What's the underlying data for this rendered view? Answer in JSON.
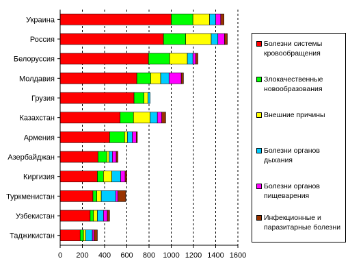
{
  "chart_data": {
    "type": "bar",
    "orientation": "horizontal",
    "stacked": true,
    "categories": [
      "Украина",
      "Россия",
      "Белоруссия",
      "Молдавия",
      "Грузия",
      "Казахстан",
      "Армения",
      "Азербайджан",
      "Киргизия",
      "Туркменистан",
      "Узбекистан",
      "Таджикистан"
    ],
    "series": [
      {
        "name": "Болезни системы кровообращения",
        "color": "#ff0000",
        "values": [
          1000,
          930,
          795,
          690,
          665,
          540,
          445,
          340,
          335,
          295,
          270,
          180
        ]
      },
      {
        "name": "Злокачественные новообразования",
        "color": "#00ff00",
        "values": [
          195,
          200,
          190,
          125,
          90,
          120,
          135,
          80,
          55,
          35,
          30,
          30
        ]
      },
      {
        "name": "Внешние причины",
        "color": "#ffff00",
        "values": [
          150,
          230,
          160,
          90,
          35,
          150,
          25,
          20,
          75,
          40,
          35,
          20
        ]
      },
      {
        "name": "Болезни органов дыхания",
        "color": "#00ccff",
        "values": [
          55,
          60,
          50,
          75,
          20,
          65,
          45,
          30,
          80,
          130,
          55,
          60
        ]
      },
      {
        "name": "Болезни органов пищеварения",
        "color": "#ff00ff",
        "values": [
          45,
          60,
          25,
          110,
          0,
          40,
          35,
          35,
          40,
          20,
          35,
          15
        ]
      },
      {
        "name": "Инфекционные и паразитарные болезни",
        "color": "#993300",
        "values": [
          30,
          25,
          20,
          20,
          0,
          35,
          10,
          15,
          15,
          70,
          20,
          30
        ]
      }
    ],
    "xlim": [
      0,
      1600
    ],
    "xticks": [
      "0",
      "200",
      "400",
      "600",
      "800",
      "1000",
      "1200",
      "1400",
      "1600"
    ],
    "grid": "vertical dashed",
    "legend_position": "right",
    "title": "",
    "xlabel": "",
    "ylabel": ""
  }
}
